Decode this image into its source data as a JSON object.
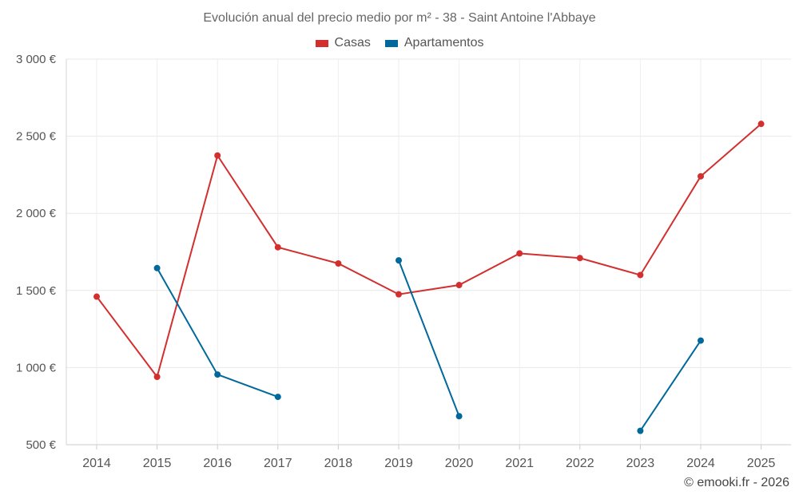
{
  "chart_data": {
    "type": "line",
    "title": "Evolución anual del precio medio por m² - 38 - Saint Antoine l'Abbaye",
    "categories": [
      "2014",
      "2015",
      "2016",
      "2017",
      "2018",
      "2019",
      "2020",
      "2021",
      "2022",
      "2023",
      "2024",
      "2025"
    ],
    "y_ticks": [
      500,
      1000,
      1500,
      2000,
      2500,
      3000
    ],
    "y_tick_labels": [
      "500 €",
      "1 000 €",
      "1 500 €",
      "2 000 €",
      "2 500 €",
      "3 000 €"
    ],
    "ylim": [
      500,
      3000
    ],
    "grid": true,
    "legend_position": "top-center",
    "series": [
      {
        "name": "Casas",
        "color": "#d32f2f",
        "values": [
          1460,
          940,
          2375,
          1780,
          1675,
          1475,
          1535,
          1740,
          1710,
          1600,
          2240,
          2580
        ]
      },
      {
        "name": "Apartamentos",
        "color": "#01689b",
        "values": [
          null,
          1645,
          955,
          810,
          null,
          1695,
          685,
          null,
          null,
          590,
          1175,
          null
        ]
      }
    ]
  },
  "footer": {
    "copyright": "© emooki.fr - 2026"
  }
}
